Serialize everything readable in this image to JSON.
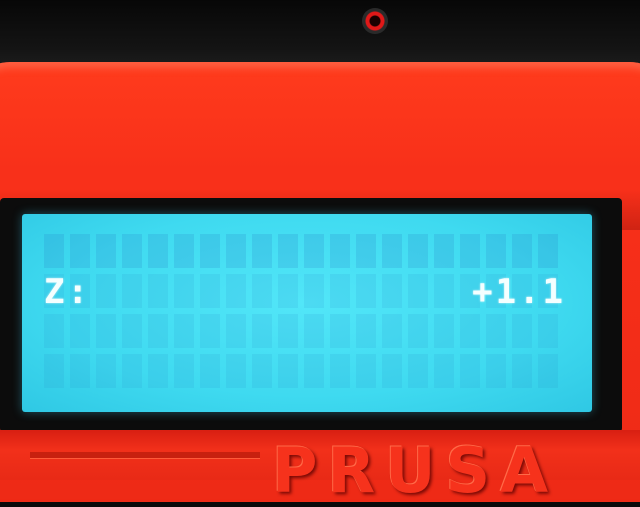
{
  "display": {
    "label": "Z:",
    "value": "+1.1"
  },
  "housing": {
    "brand_text": "PRUSA",
    "color": "#f8301a"
  },
  "lcd": {
    "backlight_color": "#3fdaf0",
    "text_color": "#f4ffff"
  }
}
